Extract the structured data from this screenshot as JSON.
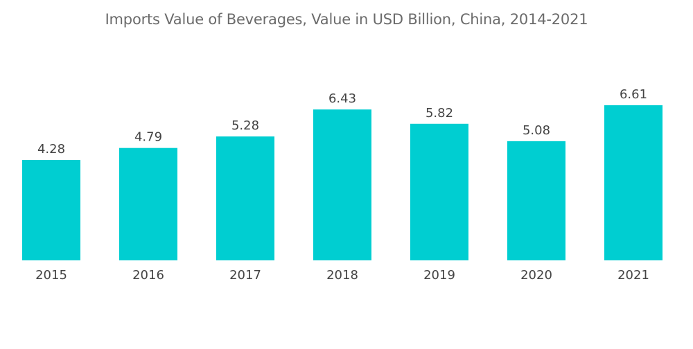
{
  "chart_data": {
    "type": "bar",
    "title": "Imports Value of Beverages, Value in USD Billion, China, 2014-2021",
    "xlabel": "",
    "ylabel": "",
    "categories": [
      "2015",
      "2016",
      "2017",
      "2018",
      "2019",
      "2020",
      "2021"
    ],
    "values": [
      4.28,
      4.79,
      5.28,
      6.43,
      5.82,
      5.08,
      6.61
    ],
    "value_labels": [
      "4.28",
      "4.79",
      "5.28",
      "6.43",
      "5.82",
      "5.08",
      "6.61"
    ],
    "ylim": [
      0,
      6.61
    ],
    "grid": false,
    "legend": "none",
    "bar_color": "#00CED1"
  }
}
